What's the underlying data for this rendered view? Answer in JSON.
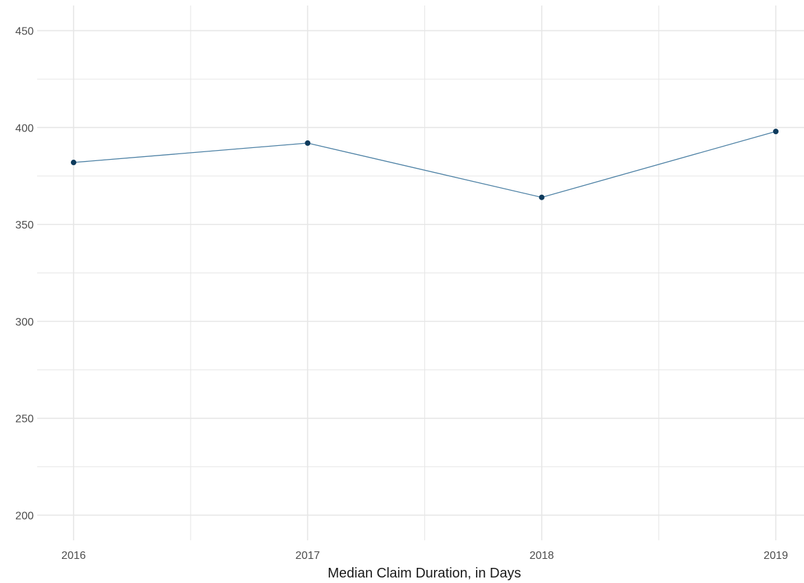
{
  "chart_data": {
    "type": "line",
    "title": "",
    "xlabel": "Median Claim Duration, in Days",
    "ylabel": "",
    "x": [
      "2016",
      "2017",
      "2018",
      "2019"
    ],
    "series": [
      {
        "values": [
          382,
          392,
          364,
          398
        ]
      }
    ],
    "ylim": [
      187,
      463
    ],
    "yticks": [
      200,
      250,
      300,
      350,
      400,
      450
    ],
    "yticks_minor": [
      225,
      275,
      325,
      375,
      425
    ],
    "xticks_minor": [
      "2016.5",
      "2017.5",
      "2018.5"
    ],
    "grid": true,
    "legend": "none",
    "colors": {
      "line": "#4a7fa3",
      "point": "#0d3a5c",
      "grid": "#e6e6e6",
      "tick_text": "#4d4d4d",
      "axis_title": "#1a1a1a",
      "background": "#ffffff"
    }
  }
}
